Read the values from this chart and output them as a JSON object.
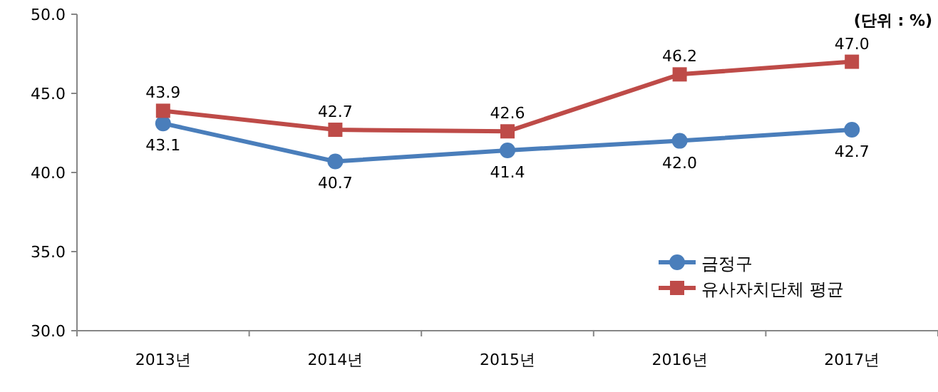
{
  "chart_data": {
    "type": "line",
    "categories": [
      "2013년",
      "2014년",
      "2015년",
      "2016년",
      "2017년"
    ],
    "series": [
      {
        "name": "금정구",
        "color": "#4a7ebb",
        "marker": "circle",
        "values": [
          43.1,
          40.7,
          41.4,
          42.0,
          42.7
        ],
        "value_labels": [
          "43.1",
          "40.7",
          "41.4",
          "42.0",
          "42.7"
        ]
      },
      {
        "name": "유사자치단체 평균",
        "color": "#be4b48",
        "marker": "square",
        "values": [
          43.9,
          42.7,
          42.6,
          46.2,
          47.0
        ],
        "value_labels": [
          "43.9",
          "42.7",
          "42.6",
          "46.2",
          "47.0"
        ]
      }
    ],
    "ylim": [
      30,
      50
    ],
    "yticks": [
      {
        "value": 30,
        "label": "30.0"
      },
      {
        "value": 35,
        "label": "35.0"
      },
      {
        "value": 40,
        "label": "40.0"
      },
      {
        "value": 45,
        "label": "45.0"
      },
      {
        "value": 50,
        "label": "50.0"
      }
    ],
    "legend": "bottom right",
    "annotations": [
      "(단위 : %)"
    ]
  }
}
